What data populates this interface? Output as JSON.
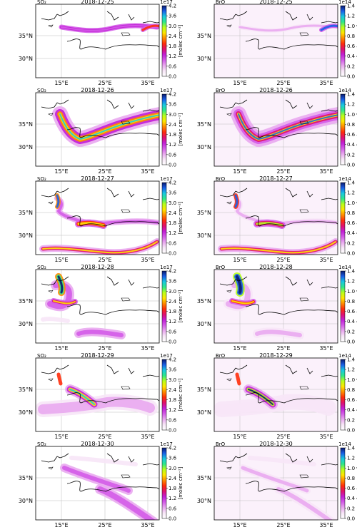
{
  "figure": {
    "x_ticks": [
      "15°E",
      "25°E",
      "35°E"
    ],
    "y_ticks": [
      "35°N",
      "30°N"
    ]
  },
  "colorbars": {
    "SO2": {
      "exponent": "1e17",
      "ticks": [
        "4.2",
        "3.6",
        "3.0",
        "2.4",
        "1.8",
        "1.2",
        "0.6",
        "0.0"
      ],
      "unit": "[molec cm⁻²]"
    },
    "BrO": {
      "exponent": "1e14",
      "ticks": [
        "1.4",
        "1.2",
        "1.0",
        "0.8",
        "0.6",
        "0.4",
        "0.2",
        "0.0"
      ],
      "unit": "[molec cm⁻²]"
    }
  },
  "colors": {
    "colormap": [
      "#ffffff",
      "#f7e6f7",
      "#e9a8ef",
      "#d45ce8",
      "#c21fd6",
      "#e0106d",
      "#ff2c0a",
      "#ff8a00",
      "#ffe600",
      "#b8ff1a",
      "#2ee88a",
      "#19c9e0",
      "#1a5fe8",
      "#0a1a6e"
    ]
  },
  "chart_data": [
    {
      "type": "heatmap",
      "species": "SO₂",
      "date": "2018-12-25",
      "colorbar_range": [
        0,
        4.2
      ],
      "colorbar_exponent": "1e17",
      "lon_ticks": [
        15,
        25,
        35
      ],
      "lat_ticks": [
        30,
        35
      ]
    },
    {
      "type": "heatmap",
      "species": "BrO",
      "date": "2018-12-25",
      "colorbar_range": [
        0,
        1.4
      ],
      "colorbar_exponent": "1e14",
      "lon_ticks": [
        15,
        25,
        35
      ],
      "lat_ticks": [
        30,
        35
      ]
    },
    {
      "type": "heatmap",
      "species": "SO₂",
      "date": "2018-12-26",
      "colorbar_range": [
        0,
        4.2
      ],
      "colorbar_exponent": "1e17",
      "lon_ticks": [
        15,
        25,
        35
      ],
      "lat_ticks": [
        30,
        35
      ]
    },
    {
      "type": "heatmap",
      "species": "BrO",
      "date": "2018-12-26",
      "colorbar_range": [
        0,
        1.4
      ],
      "colorbar_exponent": "1e14",
      "lon_ticks": [
        15,
        25,
        35
      ],
      "lat_ticks": [
        30,
        35
      ]
    },
    {
      "type": "heatmap",
      "species": "SO₂",
      "date": "2018-12-27",
      "colorbar_range": [
        0,
        4.2
      ],
      "colorbar_exponent": "1e17",
      "lon_ticks": [
        15,
        25,
        35
      ],
      "lat_ticks": [
        30,
        35
      ]
    },
    {
      "type": "heatmap",
      "species": "BrO",
      "date": "2018-12-27",
      "colorbar_range": [
        0,
        1.4
      ],
      "colorbar_exponent": "1e14",
      "lon_ticks": [
        15,
        25,
        35
      ],
      "lat_ticks": [
        30,
        35
      ]
    },
    {
      "type": "heatmap",
      "species": "SO₂",
      "date": "2018-12-28",
      "colorbar_range": [
        0,
        4.2
      ],
      "colorbar_exponent": "1e17",
      "lon_ticks": [
        15,
        25,
        35
      ],
      "lat_ticks": [
        30,
        35
      ]
    },
    {
      "type": "heatmap",
      "species": "BrO",
      "date": "2018-12-28",
      "colorbar_range": [
        0,
        1.4
      ],
      "colorbar_exponent": "1e14",
      "lon_ticks": [
        15,
        25,
        35
      ],
      "lat_ticks": [
        30,
        35
      ]
    },
    {
      "type": "heatmap",
      "species": "SO₂",
      "date": "2018-12-29",
      "colorbar_range": [
        0,
        4.2
      ],
      "colorbar_exponent": "1e17",
      "lon_ticks": [
        15,
        25,
        35
      ],
      "lat_ticks": [
        30,
        35
      ]
    },
    {
      "type": "heatmap",
      "species": "BrO",
      "date": "2018-12-29",
      "colorbar_range": [
        0,
        1.4
      ],
      "colorbar_exponent": "1e14",
      "lon_ticks": [
        15,
        25,
        35
      ],
      "lat_ticks": [
        30,
        35
      ]
    },
    {
      "type": "heatmap",
      "species": "SO₂",
      "date": "2018-12-30",
      "colorbar_range": [
        0,
        4.2
      ],
      "colorbar_exponent": "1e17",
      "lon_ticks": [
        15,
        25,
        35
      ],
      "lat_ticks": [
        30,
        35
      ]
    },
    {
      "type": "heatmap",
      "species": "BrO",
      "date": "2018-12-30",
      "colorbar_range": [
        0,
        1.4
      ],
      "colorbar_exponent": "1e14",
      "lon_ticks": [
        15,
        25,
        35
      ],
      "lat_ticks": [
        30,
        35
      ]
    }
  ]
}
